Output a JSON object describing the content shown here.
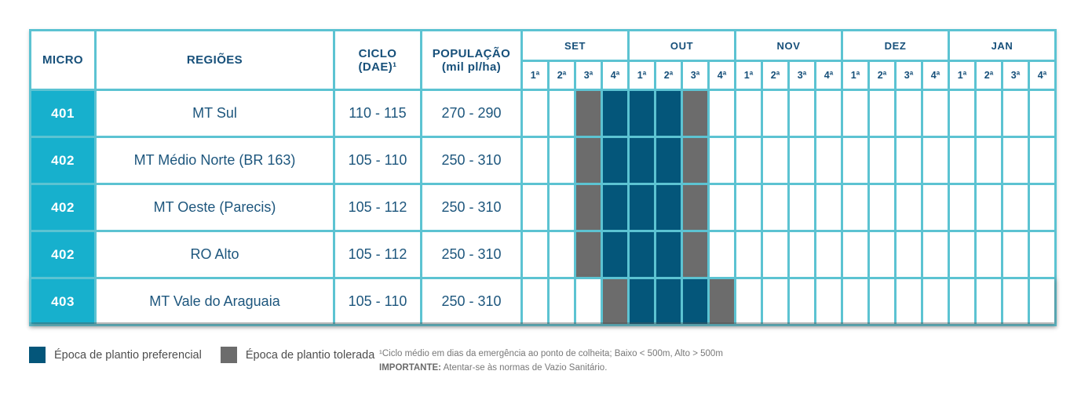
{
  "colors": {
    "preferencial": "#04567A",
    "tolerada": "#6C6C6C",
    "grid_teal": "#5CC3D2",
    "micro_cyan": "#17B0CD",
    "text_navy": "#17507A"
  },
  "header": {
    "micro": "MICRO",
    "regions": "REGIÕES",
    "cycle_line1": "CICLO",
    "cycle_line2": "(DAE)¹",
    "population_line1": "POPULAÇÃO",
    "population_line2": "(mil pl/ha)"
  },
  "calendar": {
    "months": [
      "SET",
      "OUT",
      "NOV",
      "DEZ",
      "JAN"
    ],
    "weeks": [
      "1ª",
      "2ª",
      "3ª",
      "4ª"
    ]
  },
  "rows": [
    {
      "micro": "401",
      "region": "MT Sul",
      "cycle": "110 - 115",
      "population": "270 - 290",
      "schedule": [
        "",
        "",
        "tolerada",
        "preferencial",
        "preferencial",
        "preferencial",
        "tolerada",
        "",
        "",
        "",
        "",
        "",
        "",
        "",
        "",
        "",
        "",
        "",
        "",
        ""
      ]
    },
    {
      "micro": "402",
      "region": "MT Médio Norte (BR 163)",
      "cycle": "105 - 110",
      "population": "250 - 310",
      "schedule": [
        "",
        "",
        "tolerada",
        "preferencial",
        "preferencial",
        "preferencial",
        "tolerada",
        "",
        "",
        "",
        "",
        "",
        "",
        "",
        "",
        "",
        "",
        "",
        "",
        ""
      ]
    },
    {
      "micro": "402",
      "region": "MT Oeste (Parecis)",
      "cycle": "105 - 112",
      "population": "250 - 310",
      "schedule": [
        "",
        "",
        "tolerada",
        "preferencial",
        "preferencial",
        "preferencial",
        "tolerada",
        "",
        "",
        "",
        "",
        "",
        "",
        "",
        "",
        "",
        "",
        "",
        "",
        ""
      ]
    },
    {
      "micro": "402",
      "region": "RO Alto",
      "cycle": "105 - 112",
      "population": "250 - 310",
      "schedule": [
        "",
        "",
        "tolerada",
        "preferencial",
        "preferencial",
        "preferencial",
        "tolerada",
        "",
        "",
        "",
        "",
        "",
        "",
        "",
        "",
        "",
        "",
        "",
        "",
        ""
      ]
    },
    {
      "micro": "403",
      "region": "MT Vale do Araguaia",
      "cycle": "105 - 110",
      "population": "250 - 310",
      "schedule": [
        "",
        "",
        "",
        "tolerada",
        "preferencial",
        "preferencial",
        "preferencial",
        "tolerada",
        "",
        "",
        "",
        "",
        "",
        "",
        "",
        "",
        "",
        "",
        "",
        ""
      ]
    }
  ],
  "legend": [
    {
      "type": "preferencial",
      "label": "Época de plantio preferencial"
    },
    {
      "type": "tolerada",
      "label": "Época de plantio tolerada"
    }
  ],
  "footnotes": {
    "line1": "¹Ciclo médio em dias da emergência ao ponto de colheita; Baixo < 500m, Alto > 500m",
    "line2_label": "IMPORTANTE:",
    "line2_text": " Atentar-se às normas de Vazio Sanitário."
  }
}
